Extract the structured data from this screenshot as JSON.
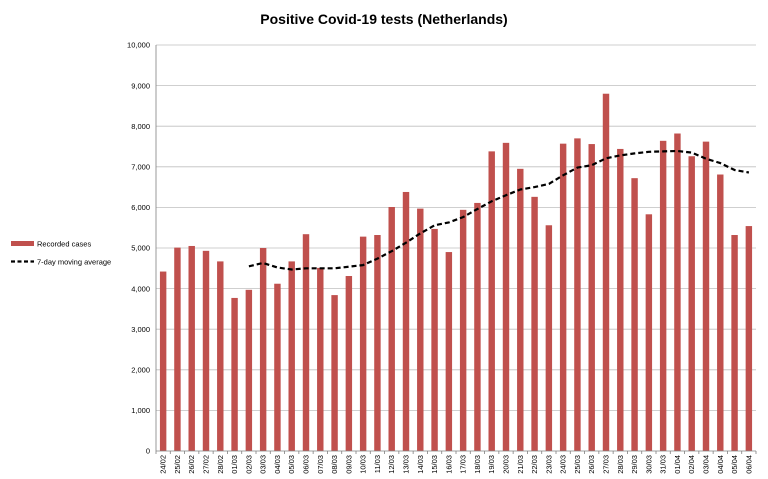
{
  "chart_data": {
    "type": "bar",
    "title": "Positive Covid-19 tests (Netherlands)",
    "xlabel": "",
    "ylabel": "",
    "ylim": [
      0,
      10000
    ],
    "yticks": [
      "0",
      "1,000",
      "2,000",
      "3,000",
      "4,000",
      "5,000",
      "6,000",
      "7,000",
      "8,000",
      "9,000",
      "10,000"
    ],
    "grid": true,
    "legend_position": "left",
    "categories": [
      "24/02",
      "25/02",
      "26/02",
      "27/02",
      "28/02",
      "01/03",
      "02/03",
      "03/03",
      "04/03",
      "05/03",
      "06/03",
      "07/03",
      "08/03",
      "09/03",
      "10/03",
      "11/03",
      "12/03",
      "13/03",
      "14/03",
      "15/03",
      "16/03",
      "17/03",
      "18/03",
      "19/03",
      "20/03",
      "21/03",
      "22/03",
      "23/03",
      "24/03",
      "25/03",
      "26/03",
      "27/03",
      "28/03",
      "29/03",
      "30/03",
      "31/03",
      "01/04",
      "02/04",
      "03/04",
      "04/04",
      "05/04",
      "06/04"
    ],
    "series": [
      {
        "name": "Recorded cases",
        "type": "bar",
        "color": "#c0504d",
        "values": [
          4420,
          5010,
          5050,
          4930,
          4670,
          3770,
          3970,
          5000,
          4120,
          4670,
          5340,
          4510,
          3840,
          4310,
          5280,
          5320,
          6010,
          6380,
          5970,
          5470,
          4900,
          5940,
          6110,
          7380,
          7590,
          6950,
          6260,
          5560,
          7570,
          7700,
          7560,
          8800,
          7440,
          6720,
          5830,
          7640,
          7820,
          7260,
          7620,
          6810,
          5320,
          5540
        ]
      },
      {
        "name": "7-day moving average",
        "type": "line",
        "color": "#000000",
        "dashed": true,
        "values": [
          null,
          null,
          null,
          null,
          null,
          null,
          4550,
          4630,
          4520,
          4470,
          4500,
          4500,
          4500,
          4540,
          4580,
          4740,
          4920,
          5130,
          5360,
          5560,
          5630,
          5760,
          5960,
          6150,
          6300,
          6440,
          6500,
          6580,
          6790,
          6980,
          7040,
          7210,
          7280,
          7330,
          7370,
          7380,
          7390,
          7350,
          7200,
          7090,
          6920,
          6860
        ]
      }
    ]
  }
}
